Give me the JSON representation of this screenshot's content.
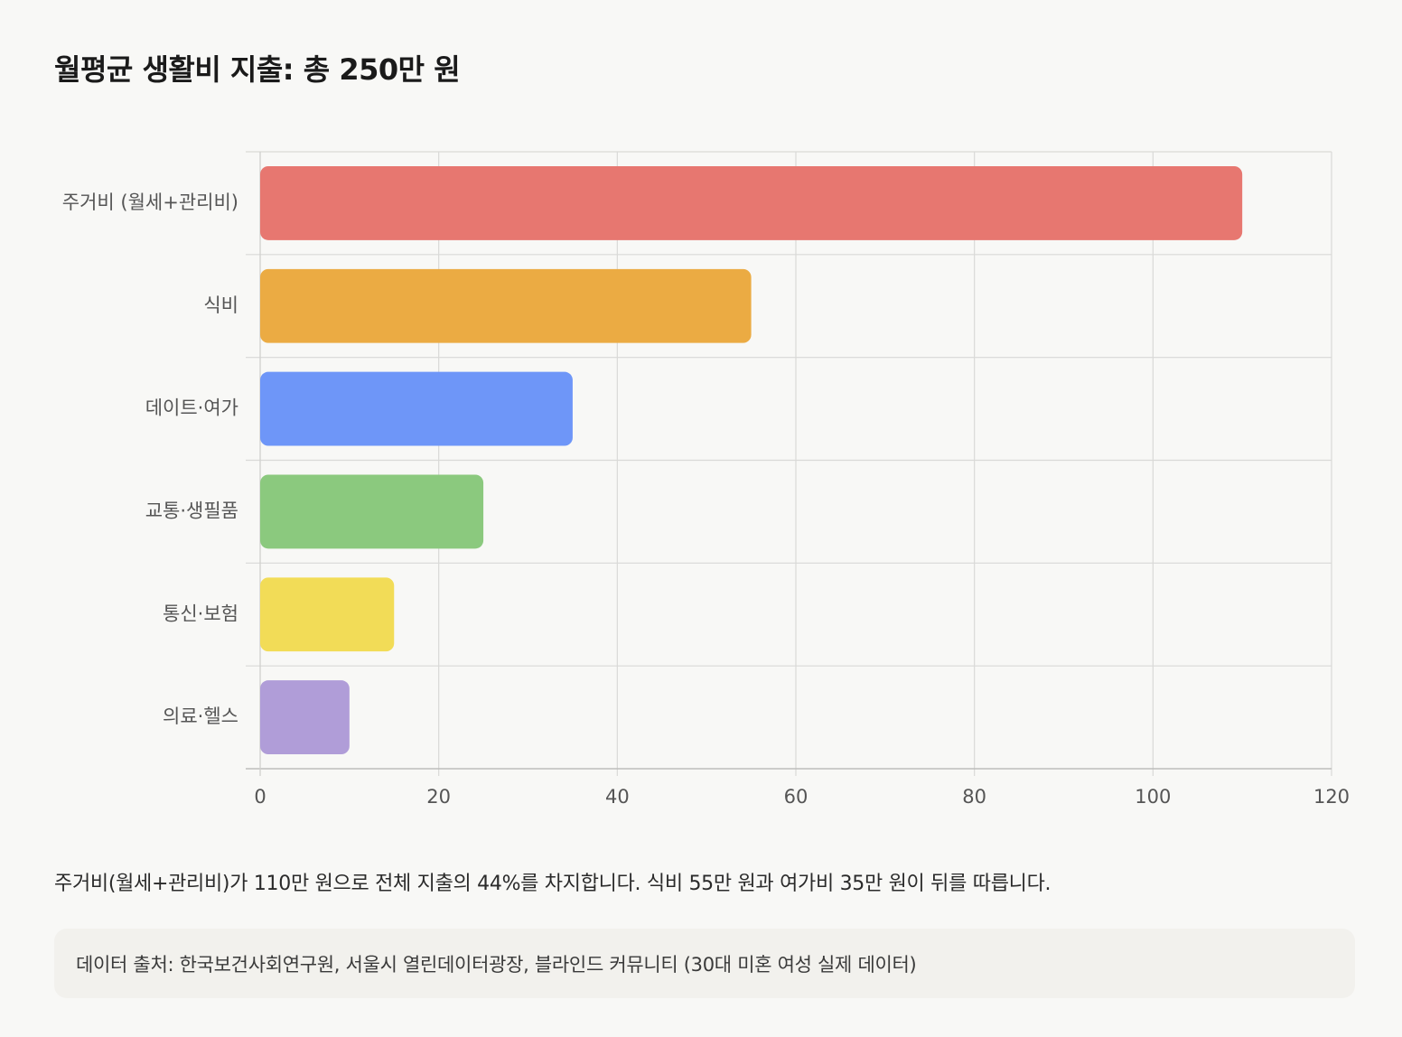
{
  "title": "월평균 생활비 지출: 총 250만 원",
  "summary": "주거비(월세+관리비)가 110만 원으로 전체 지출의 44%를 차지합니다. 식비 55만 원과 여가비 35만 원이 뒤를 따릅니다.",
  "source": "데이터 출처: 한국보건사회연구원, 서울시 열린데이터광장, 블라인드 커뮤니티 (30대 미혼 여성 실제 데이터)",
  "chart_data": {
    "type": "bar",
    "orientation": "horizontal",
    "title": "",
    "xlabel": "",
    "ylabel": "",
    "categories": [
      "주거비 (월세+관리비)",
      "식비",
      "데이트·여가",
      "교통·생필품",
      "통신·보험",
      "의료·헬스"
    ],
    "values": [
      110,
      55,
      35,
      25,
      15,
      10
    ],
    "colors": [
      "#e77770",
      "#ebab43",
      "#6e96f8",
      "#8bc97e",
      "#f2dc57",
      "#b09dd8"
    ],
    "xlim": [
      0,
      120
    ],
    "xticks": [
      0,
      20,
      40,
      60,
      80,
      100,
      120
    ],
    "grid": true,
    "legend": "none"
  }
}
